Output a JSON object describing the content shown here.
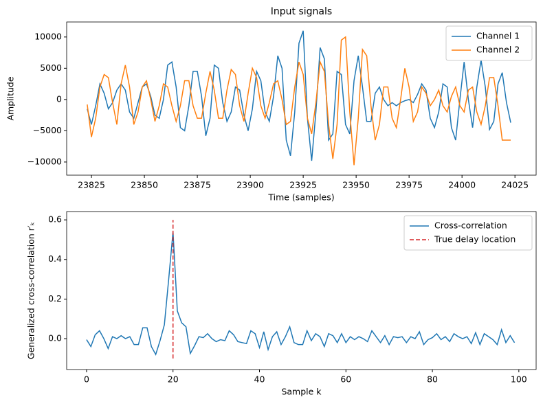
{
  "chart_data": [
    {
      "type": "line",
      "title": "Input signals",
      "xlabel": "Time (samples)",
      "ylabel": "Amplitude",
      "xlim": [
        23813.3,
        24035
      ],
      "ylim": [
        -12100,
        12400
      ],
      "xticks": [
        23825,
        23850,
        23875,
        23900,
        23925,
        23950,
        23975,
        24000,
        24025
      ],
      "yticks": [
        {
          "value": -10000,
          "label": "−10000"
        },
        {
          "value": -5000,
          "label": "−5000"
        },
        0,
        5000,
        10000
      ],
      "legend": "upper right",
      "series": [
        {
          "name": "Channel 1",
          "color": "#1f77b4",
          "linestyle": "solid",
          "x": [
            23823,
            23825,
            23827,
            23829,
            23831,
            23833,
            23835,
            23837,
            23839,
            23841,
            23843,
            23845,
            23847,
            23849,
            23851,
            23853,
            23855,
            23857,
            23859,
            23861,
            23863,
            23865,
            23867,
            23869,
            23871,
            23873,
            23875,
            23877,
            23879,
            23881,
            23883,
            23885,
            23887,
            23889,
            23891,
            23893,
            23895,
            23897,
            23899,
            23901,
            23903,
            23905,
            23907,
            23909,
            23911,
            23913,
            23915,
            23917,
            23919,
            23921,
            23923,
            23925,
            23927,
            23929,
            23931,
            23933,
            23935,
            23937,
            23939,
            23941,
            23943,
            23945,
            23947,
            23949,
            23951,
            23953,
            23955,
            23957,
            23959,
            23961,
            23963,
            23965,
            23967,
            23969,
            23971,
            23973,
            23975,
            23977,
            23979,
            23981,
            23983,
            23985,
            23987,
            23989,
            23991,
            23993,
            23995,
            23997,
            23999,
            24001,
            24003,
            24005,
            24007,
            24009,
            24011,
            24013,
            24015,
            24017,
            24019,
            24021,
            24023
          ],
          "values": [
            -1500,
            -4000,
            -1000,
            2500,
            1000,
            -1500,
            -500,
            1500,
            2500,
            1500,
            -2000,
            -3000,
            -500,
            2000,
            2500,
            500,
            -2500,
            -3000,
            0,
            5500,
            6000,
            2000,
            -4500,
            -5000,
            -1000,
            4500,
            4500,
            500,
            -5800,
            -3000,
            5500,
            5000,
            -500,
            -3500,
            -2000,
            2000,
            1500,
            -2500,
            -5000,
            -1500,
            4500,
            3000,
            -2000,
            -3500,
            500,
            7000,
            5000,
            -6500,
            -9000,
            -2000,
            9000,
            11000,
            -3000,
            -9800,
            -2000,
            8300,
            6500,
            -6500,
            -5500,
            4500,
            4000,
            -4000,
            -5500,
            3000,
            7000,
            2000,
            -3500,
            -3500,
            1000,
            2000,
            0,
            -1000,
            -500,
            -1000,
            -500,
            -200,
            0,
            -500,
            800,
            2500,
            1500,
            -3000,
            -4500,
            -2000,
            2500,
            2000,
            -4500,
            -6500,
            0,
            6000,
            0,
            -4500,
            2000,
            6300,
            2000,
            -4800,
            -3500,
            2500,
            4300,
            -500,
            -3700
          ]
        },
        {
          "name": "Channel 2",
          "color": "#ff7f0e",
          "linestyle": "solid",
          "x": [
            23823,
            23825,
            23827,
            23829,
            23831,
            23833,
            23835,
            23837,
            23839,
            23841,
            23843,
            23845,
            23847,
            23849,
            23851,
            23853,
            23855,
            23857,
            23859,
            23861,
            23863,
            23865,
            23867,
            23869,
            23871,
            23873,
            23875,
            23877,
            23879,
            23881,
            23883,
            23885,
            23887,
            23889,
            23891,
            23893,
            23895,
            23897,
            23899,
            23901,
            23903,
            23905,
            23907,
            23909,
            23911,
            23913,
            23915,
            23917,
            23919,
            23921,
            23923,
            23925,
            23927,
            23929,
            23931,
            23933,
            23935,
            23937,
            23939,
            23941,
            23943,
            23945,
            23947,
            23949,
            23951,
            23953,
            23955,
            23957,
            23959,
            23961,
            23963,
            23965,
            23967,
            23969,
            23971,
            23973,
            23975,
            23977,
            23979,
            23981,
            23983,
            23985,
            23987,
            23989,
            23991,
            23993,
            23995,
            23997,
            23999,
            24001,
            24003,
            24005,
            24007,
            24009,
            24011,
            24013,
            24015,
            24017,
            24019,
            24021,
            24023
          ],
          "values": [
            -800,
            -6000,
            -3000,
            2000,
            4000,
            3500,
            -500,
            -4000,
            2500,
            5500,
            2000,
            -4000,
            -2000,
            2000,
            3000,
            0,
            -3500,
            -1000,
            2500,
            2000,
            -1000,
            -3500,
            -1000,
            3000,
            3000,
            -1000,
            -3000,
            -3000,
            1000,
            4500,
            1500,
            -3000,
            -3000,
            1500,
            4800,
            4000,
            -1000,
            -3500,
            1000,
            5000,
            3500,
            -1000,
            -3000,
            -500,
            2500,
            3000,
            0,
            -4000,
            -3500,
            2000,
            6000,
            4000,
            -3000,
            -5500,
            -500,
            6000,
            4500,
            -4000,
            -9500,
            -4000,
            9500,
            10000,
            -2000,
            -10500,
            -3000,
            8000,
            7000,
            -1000,
            -6500,
            -4000,
            2000,
            2000,
            -3000,
            -4500,
            0,
            5000,
            2000,
            -3500,
            -2000,
            2000,
            1000,
            -1000,
            0,
            1500,
            -1000,
            -2000,
            500,
            2000,
            -1000,
            -2000,
            1500,
            2000,
            -2000,
            -4000,
            -1000,
            3500,
            3500,
            -1000,
            -6500,
            -6500,
            -6500
          ]
        }
      ]
    },
    {
      "type": "line",
      "xlabel": "Sample k",
      "ylabel": "Generalized cross-correlation r′ₖ",
      "xlim": [
        -4.6,
        104
      ],
      "ylim": [
        -0.156,
        0.642
      ],
      "xticks": [
        0,
        20,
        40,
        60,
        80,
        100
      ],
      "yticks": [
        {
          "value": 0,
          "label": "0.0"
        },
        0.2,
        0.4,
        0.6
      ],
      "legend": "upper right",
      "series": [
        {
          "name": "Cross-correlation",
          "color": "#1f77b4",
          "linestyle": "solid",
          "x": [
            0,
            1,
            2,
            3,
            4,
            5,
            6,
            7,
            8,
            9,
            10,
            11,
            12,
            13,
            14,
            15,
            16,
            17,
            18,
            19,
            20,
            21,
            22,
            23,
            24,
            25,
            26,
            27,
            28,
            29,
            30,
            31,
            32,
            33,
            34,
            35,
            36,
            37,
            38,
            39,
            40,
            41,
            42,
            43,
            44,
            45,
            46,
            47,
            48,
            49,
            50,
            51,
            52,
            53,
            54,
            55,
            56,
            57,
            58,
            59,
            60,
            61,
            62,
            63,
            64,
            65,
            66,
            67,
            68,
            69,
            70,
            71,
            72,
            73,
            74,
            75,
            76,
            77,
            78,
            79,
            80,
            81,
            82,
            83,
            84,
            85,
            86,
            87,
            88,
            89,
            90,
            91,
            92,
            93,
            94,
            95,
            96,
            97,
            98,
            99
          ],
          "values": [
            -0.005,
            -0.04,
            0.02,
            0.04,
            0.0,
            -0.05,
            0.01,
            0.0,
            0.015,
            0.0,
            0.01,
            -0.03,
            -0.03,
            0.055,
            0.055,
            -0.04,
            -0.08,
            -0.01,
            0.07,
            0.3,
            0.54,
            0.14,
            0.08,
            0.06,
            -0.075,
            -0.035,
            0.01,
            0.005,
            0.025,
            0.0,
            -0.015,
            -0.005,
            -0.01,
            0.04,
            0.02,
            -0.015,
            -0.02,
            -0.025,
            0.04,
            0.025,
            -0.045,
            0.035,
            -0.055,
            0.01,
            0.035,
            -0.03,
            0.01,
            0.06,
            -0.02,
            -0.03,
            -0.03,
            0.04,
            -0.01,
            0.025,
            0.01,
            -0.04,
            0.025,
            0.015,
            -0.02,
            0.025,
            -0.02,
            0.01,
            -0.005,
            0.01,
            0.0,
            -0.015,
            0.04,
            0.01,
            -0.02,
            0.015,
            -0.03,
            0.01,
            0.005,
            0.01,
            -0.02,
            0.01,
            0.0,
            0.035,
            -0.03,
            -0.005,
            0.005,
            0.025,
            -0.005,
            0.01,
            -0.015,
            0.025,
            0.01,
            0.0,
            0.01,
            -0.025,
            0.03,
            -0.03,
            0.025,
            0.01,
            -0.005,
            -0.03,
            0.045,
            -0.02,
            0.015,
            -0.02
          ]
        },
        {
          "name": "True delay location",
          "color": "#d62728",
          "linestyle": "dashed",
          "x": [
            20,
            20
          ],
          "values": [
            -0.1,
            0.6
          ]
        }
      ]
    }
  ]
}
